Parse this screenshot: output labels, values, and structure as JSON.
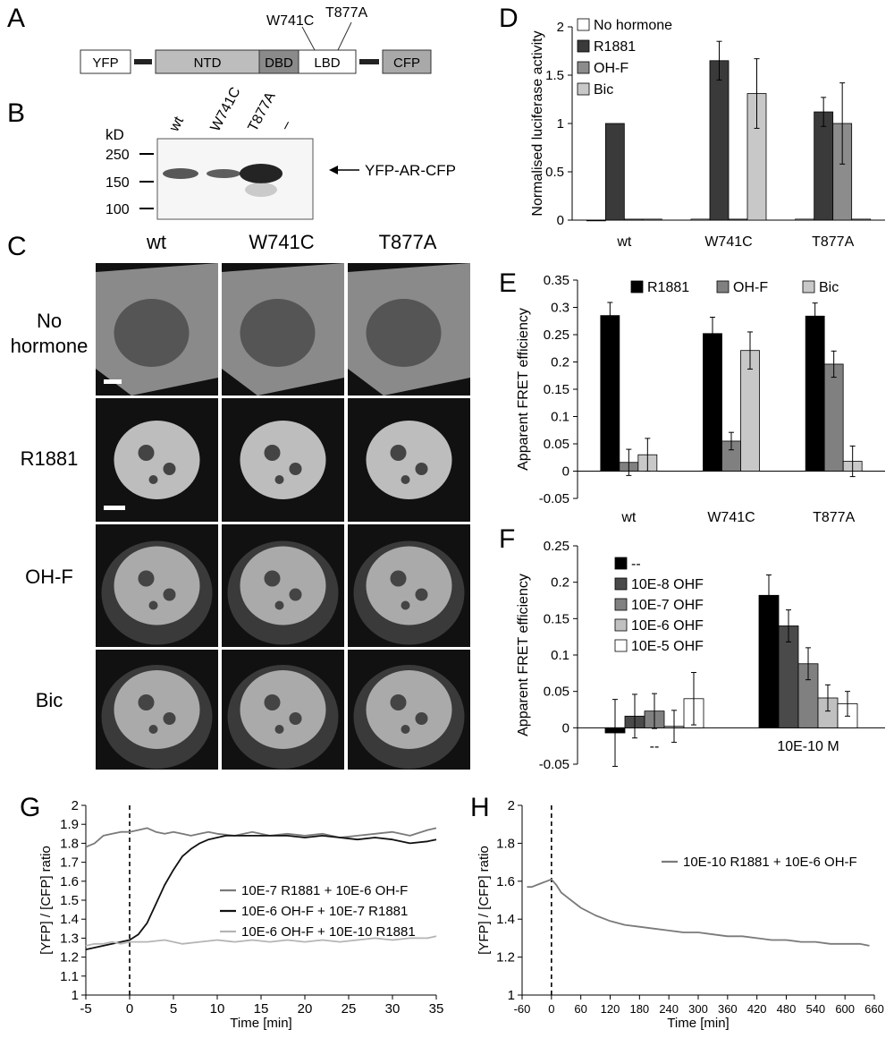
{
  "panels": {
    "A": "A",
    "B": "B",
    "C": "C",
    "D": "D",
    "E": "E",
    "F": "F",
    "G": "G",
    "H": "H"
  },
  "panelA": {
    "domains": [
      "YFP",
      "NTD",
      "DBD",
      "LBD",
      "CFP"
    ],
    "mutations": [
      "W741C",
      "T877A"
    ],
    "colors": {
      "NTD": "#bdbdbd",
      "DBD": "#8a8a8a",
      "LBD": "#ffffff",
      "fluor": "#ffffff",
      "CFP": "#a9a9a9"
    }
  },
  "panelB": {
    "unit": "kD",
    "markers": [
      "250",
      "150",
      "100"
    ],
    "lanes": [
      "wt",
      "W741C",
      "T877A",
      "–"
    ],
    "band_label": "YFP-AR-CFP"
  },
  "panelC": {
    "columns": [
      "wt",
      "W741C",
      "T877A"
    ],
    "rows": [
      "No hormone",
      "R1881",
      "OH-F",
      "Bic"
    ]
  },
  "chart_data": [
    {
      "id": "D",
      "type": "bar",
      "categories": [
        "wt",
        "W741C",
        "T877A"
      ],
      "ylabel": "Normalised luciferase activity",
      "ylim": [
        0,
        2
      ],
      "yticks": [
        "0",
        "0.5",
        "1",
        "1.5",
        "2"
      ],
      "legend_position": "top-left",
      "series": [
        {
          "name": "No hormone",
          "color": "#ffffff",
          "values": [
            0,
            0.01,
            0.01
          ],
          "errors": [
            0,
            0,
            0
          ]
        },
        {
          "name": "R1881",
          "color": "#3a3a3a",
          "values": [
            1,
            1.65,
            1.12
          ],
          "errors": [
            0,
            0.2,
            0.15
          ]
        },
        {
          "name": "OH-F",
          "color": "#8c8c8c",
          "values": [
            0.01,
            0.01,
            1.0
          ],
          "errors": [
            0,
            0,
            0.42
          ]
        },
        {
          "name": "Bic",
          "color": "#c8c8c8",
          "values": [
            0.01,
            1.31,
            0.01
          ],
          "errors": [
            0,
            0.36,
            0
          ]
        }
      ]
    },
    {
      "id": "E",
      "type": "bar",
      "categories": [
        "wt",
        "W741C",
        "T877A"
      ],
      "ylabel": "Apparent FRET efficiency",
      "ylim": [
        -0.05,
        0.35
      ],
      "yticks": [
        "-0.05",
        "0",
        "0.05",
        "0.1",
        "0.15",
        "0.2",
        "0.25",
        "0.3",
        "0.35"
      ],
      "legend_position": "top",
      "series": [
        {
          "name": "R1881",
          "color": "#000000",
          "values": [
            0.285,
            0.252,
            0.284
          ],
          "errors": [
            0.024,
            0.03,
            0.024
          ]
        },
        {
          "name": "OH-F",
          "color": "#808080",
          "values": [
            0.016,
            0.055,
            0.196
          ],
          "errors": [
            0.024,
            0.016,
            0.024
          ]
        },
        {
          "name": "Bic",
          "color": "#c8c8c8",
          "values": [
            0.03,
            0.221,
            0.018
          ],
          "errors": [
            0.03,
            0.034,
            0.028
          ]
        }
      ]
    },
    {
      "id": "F",
      "type": "bar",
      "categories": [
        "--",
        "10E-10 M"
      ],
      "ylabel": "Apparent FRET efficiency",
      "ylim": [
        -0.05,
        0.25
      ],
      "yticks": [
        "-0.05",
        "0",
        "0.05",
        "0.1",
        "0.15",
        "0.2",
        "0.25"
      ],
      "legend_position": "top-left",
      "series": [
        {
          "name": "--",
          "color": "#000000",
          "values": [
            -0.007,
            0.182
          ],
          "errors": [
            0.046,
            0.028
          ]
        },
        {
          "name": "10E-8 OHF",
          "color": "#4a4a4a",
          "values": [
            0.016,
            0.14
          ],
          "errors": [
            0.03,
            0.022
          ]
        },
        {
          "name": "10E-7 OHF",
          "color": "#808080",
          "values": [
            0.023,
            0.088
          ],
          "errors": [
            0.024,
            0.022
          ]
        },
        {
          "name": "10E-6 OHF",
          "color": "#c0c0c0",
          "values": [
            0.002,
            0.041
          ],
          "errors": [
            0.022,
            0.018
          ]
        },
        {
          "name": "10E-5 OHF",
          "color": "#ffffff",
          "values": [
            0.04,
            0.033
          ],
          "errors": [
            0.036,
            0.017
          ]
        }
      ]
    },
    {
      "id": "G",
      "type": "line",
      "xlabel": "Time [min]",
      "ylabel": "[YFP] / [CFP] ratio",
      "xlim": [
        -5,
        35
      ],
      "ylim": [
        1,
        2
      ],
      "xticks": [
        "-5",
        "0",
        "5",
        "10",
        "15",
        "20",
        "25",
        "30",
        "35"
      ],
      "yticks": [
        "1",
        "1.1",
        "1.2",
        "1.3",
        "1.4",
        "1.5",
        "1.6",
        "1.7",
        "1.8",
        "1.9",
        "2"
      ],
      "marker_line_x": 0,
      "legend_position": "center-right",
      "series": [
        {
          "name": "10E-7 R1881 + 10E-6 OH-F",
          "color": "#7a7a7a",
          "x": [
            -5,
            -4,
            -3,
            -2,
            -1,
            0,
            1,
            2,
            3,
            4,
            5,
            6,
            7,
            8,
            9,
            10,
            12,
            14,
            16,
            18,
            20,
            22,
            24,
            26,
            28,
            30,
            32,
            34,
            35
          ],
          "y": [
            1.78,
            1.8,
            1.84,
            1.85,
            1.86,
            1.86,
            1.87,
            1.88,
            1.86,
            1.85,
            1.86,
            1.85,
            1.84,
            1.85,
            1.86,
            1.85,
            1.84,
            1.86,
            1.84,
            1.85,
            1.84,
            1.85,
            1.83,
            1.84,
            1.85,
            1.86,
            1.84,
            1.87,
            1.88
          ]
        },
        {
          "name": "10E-6 OH-F + 10E-7 R1881",
          "color": "#111111",
          "x": [
            -5,
            -4,
            -3,
            -2,
            -1,
            0,
            1,
            2,
            3,
            4,
            5,
            6,
            7,
            8,
            9,
            10,
            11,
            12,
            14,
            16,
            18,
            20,
            22,
            24,
            26,
            28,
            30,
            32,
            34,
            35
          ],
          "y": [
            1.24,
            1.25,
            1.26,
            1.27,
            1.28,
            1.29,
            1.32,
            1.38,
            1.48,
            1.58,
            1.66,
            1.73,
            1.77,
            1.8,
            1.82,
            1.83,
            1.84,
            1.84,
            1.84,
            1.84,
            1.84,
            1.83,
            1.84,
            1.83,
            1.82,
            1.83,
            1.82,
            1.8,
            1.81,
            1.82
          ]
        },
        {
          "name": "10E-6 OH-F + 10E-10 R1881",
          "color": "#b5b5b5",
          "x": [
            -5,
            -4,
            -3,
            -2,
            -1,
            0,
            2,
            4,
            6,
            8,
            10,
            12,
            14,
            16,
            18,
            20,
            22,
            24,
            26,
            28,
            30,
            32,
            34,
            35
          ],
          "y": [
            1.26,
            1.27,
            1.27,
            1.28,
            1.27,
            1.28,
            1.28,
            1.29,
            1.27,
            1.28,
            1.29,
            1.28,
            1.29,
            1.28,
            1.29,
            1.28,
            1.29,
            1.28,
            1.29,
            1.3,
            1.29,
            1.3,
            1.3,
            1.31
          ]
        }
      ]
    },
    {
      "id": "H",
      "type": "line",
      "xlabel": "Time [min]",
      "ylabel": "[YFP] / [CFP] ratio",
      "xlim": [
        -60,
        660
      ],
      "ylim": [
        1,
        2
      ],
      "xticks": [
        "-60",
        "0",
        "60",
        "120",
        "180",
        "240",
        "300",
        "360",
        "420",
        "480",
        "540",
        "600",
        "660"
      ],
      "yticks": [
        "1",
        "1.2",
        "1.4",
        "1.6",
        "1.8",
        "2"
      ],
      "marker_line_x": 0,
      "legend_position": "top-right",
      "series": [
        {
          "name": "10E-10 R1881 + 10E-6 OH-F",
          "color": "#7a7a7a",
          "x": [
            -50,
            -40,
            -30,
            -20,
            -10,
            0,
            10,
            20,
            40,
            60,
            90,
            120,
            150,
            180,
            210,
            240,
            270,
            300,
            330,
            360,
            390,
            420,
            450,
            480,
            510,
            540,
            570,
            600,
            630,
            650
          ],
          "y": [
            1.57,
            1.57,
            1.58,
            1.59,
            1.6,
            1.61,
            1.58,
            1.54,
            1.5,
            1.46,
            1.42,
            1.39,
            1.37,
            1.36,
            1.35,
            1.34,
            1.33,
            1.33,
            1.32,
            1.31,
            1.31,
            1.3,
            1.29,
            1.29,
            1.28,
            1.28,
            1.27,
            1.27,
            1.27,
            1.26
          ]
        }
      ]
    }
  ]
}
